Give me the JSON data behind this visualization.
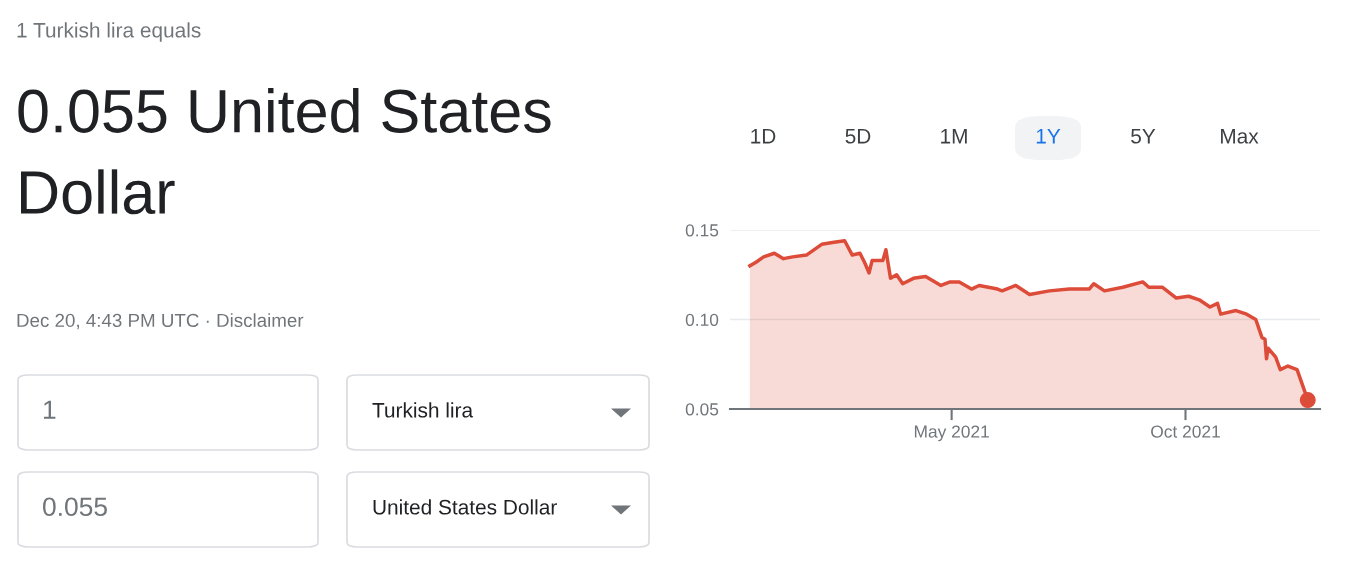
{
  "chart_data": {
    "type": "area",
    "title": "1 Turkish lira equals",
    "subtitle": "0.055 United States Dollar",
    "annotations": [
      "Dec 20, 4:43 PM UTC · Disclaimer",
      "1",
      "Turkish lira",
      "0.055",
      "United States Dollar",
      "1D",
      "5D",
      "1M",
      "1Y",
      "5Y",
      "Max"
    ],
    "series": [
      {
        "color": "#dd4b39",
        "x": [
          "2020-12-20",
          "2020-12-24",
          "2020-12-29",
          "2021-01-05",
          "2021-01-11",
          "2021-01-17",
          "2021-01-26",
          "2021-02-05",
          "2021-02-12",
          "2021-02-20",
          "2021-02-25",
          "2021-03-02",
          "2021-03-05",
          "2021-03-08",
          "2021-03-10",
          "2021-03-17",
          "2021-03-19",
          "2021-03-22",
          "2021-03-26",
          "2021-03-30",
          "2021-04-06",
          "2021-04-14",
          "2021-04-24",
          "2021-04-30",
          "2021-05-06",
          "2021-05-14",
          "2021-05-19",
          "2021-05-31",
          "2021-06-03",
          "2021-06-12",
          "2021-06-21",
          "2021-07-04",
          "2021-07-17",
          "2021-07-30",
          "2021-08-02",
          "2021-08-09",
          "2021-08-21",
          "2021-09-03",
          "2021-09-07",
          "2021-09-16",
          "2021-09-25",
          "2021-10-03",
          "2021-10-10",
          "2021-10-17",
          "2021-10-22",
          "2021-10-24",
          "2021-11-03",
          "2021-11-10",
          "2021-11-16",
          "2021-11-20",
          "2021-11-22",
          "2021-11-23",
          "2021-11-24",
          "2021-11-29",
          "2021-12-02",
          "2021-12-07",
          "2021-12-13",
          "2021-12-20"
        ],
        "values": [
          0.13,
          0.132,
          0.135,
          0.137,
          0.134,
          0.135,
          0.136,
          0.142,
          0.143,
          0.144,
          0.136,
          0.137,
          0.132,
          0.126,
          0.133,
          0.133,
          0.139,
          0.123,
          0.125,
          0.12,
          0.123,
          0.124,
          0.119,
          0.121,
          0.121,
          0.117,
          0.119,
          0.117,
          0.116,
          0.119,
          0.114,
          0.116,
          0.117,
          0.117,
          0.12,
          0.116,
          0.118,
          0.121,
          0.118,
          0.118,
          0.112,
          0.113,
          0.111,
          0.107,
          0.109,
          0.103,
          0.105,
          0.103,
          0.1,
          0.09,
          0.089,
          0.078,
          0.084,
          0.079,
          0.072,
          0.074,
          0.072,
          0.055
        ]
      },
      {
        "type": "scatter",
        "color": "#dd4b39",
        "x": [
          "2021-12-20"
        ],
        "values": [
          0.055
        ]
      }
    ],
    "xlim": [
      "2020-12-07",
      "2021-12-28"
    ],
    "xticks": [
      {
        "value": "2021-05-01",
        "label": "May 2021"
      },
      {
        "value": "2021-10-01",
        "label": "Oct 2021"
      }
    ],
    "ylim": [
      0.05,
      0.15
    ],
    "yticks": [
      0.05,
      {
        "value": 0.1,
        "label": "0.10"
      },
      0.15
    ],
    "grid": "y",
    "legend": false
  }
}
